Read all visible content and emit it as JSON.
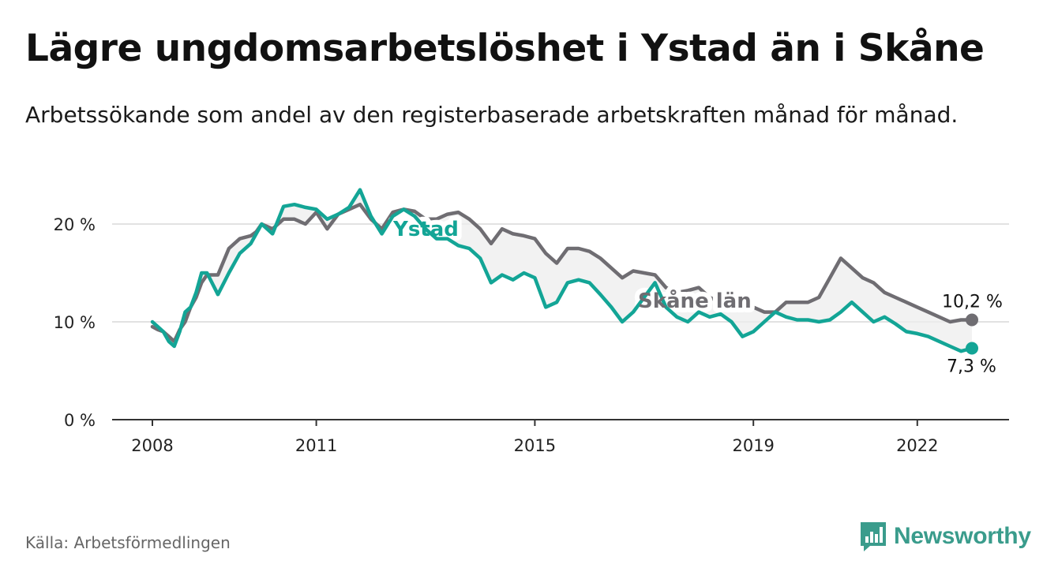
{
  "header": {
    "title": "Lägre ungdomsarbetslöshet i Ystad än i Skåne",
    "subtitle": "Arbetssökande som andel av den registerbaserade arbetskraften månad för månad."
  },
  "footer": {
    "source": "Källa: Arbetsförmedlingen",
    "brand": "Newsworthy"
  },
  "colors": {
    "ystad": "#13a596",
    "skane": "#6f6d72",
    "fill": "#eeeeee",
    "grid": "#d9d9d9",
    "axis": "#333333",
    "brand": "#3a9c8c"
  },
  "chart_data": {
    "type": "line",
    "title": "Lägre ungdomsarbetslöshet i Ystad än i Skåne",
    "xlabel": "",
    "ylabel": "",
    "x_unit": "year (decimal)",
    "xlim": [
      2007.3,
      2023.6
    ],
    "ylim": [
      0,
      25
    ],
    "x_ticks": [
      2008,
      2011,
      2015,
      2019,
      2022
    ],
    "x_tick_labels": [
      "2008",
      "2011",
      "2015",
      "2019",
      "2022"
    ],
    "y_ticks": [
      0,
      10,
      20
    ],
    "y_tick_labels": [
      "0 %",
      "10 %",
      "20 %"
    ],
    "grid": true,
    "series": [
      {
        "name": "Ystad",
        "label": "Ystad",
        "end_label": "7,3 %",
        "x": [
          2008.0,
          2008.1,
          2008.2,
          2008.3,
          2008.4,
          2008.5,
          2008.6,
          2008.7,
          2008.8,
          2008.9,
          2009.0,
          2009.2,
          2009.4,
          2009.6,
          2009.8,
          2009.9,
          2010.0,
          2010.2,
          2010.4,
          2010.6,
          2010.8,
          2011.0,
          2011.2,
          2011.4,
          2011.6,
          2011.8,
          2012.0,
          2012.2,
          2012.4,
          2012.6,
          2012.8,
          2013.0,
          2013.2,
          2013.4,
          2013.6,
          2013.8,
          2014.0,
          2014.2,
          2014.4,
          2014.6,
          2014.8,
          2015.0,
          2015.2,
          2015.4,
          2015.6,
          2015.8,
          2016.0,
          2016.2,
          2016.4,
          2016.6,
          2016.8,
          2017.0,
          2017.2,
          2017.4,
          2017.6,
          2017.8,
          2018.0,
          2018.2,
          2018.4,
          2018.6,
          2018.8,
          2019.0,
          2019.2,
          2019.4,
          2019.6,
          2019.8,
          2020.0,
          2020.2,
          2020.4,
          2020.6,
          2020.8,
          2021.0,
          2021.2,
          2021.4,
          2021.6,
          2021.8,
          2022.0,
          2022.2,
          2022.4,
          2022.6,
          2022.8,
          2023.0
        ],
        "values": [
          10.0,
          9.5,
          9.0,
          8.0,
          7.5,
          9.0,
          11.0,
          11.5,
          13.0,
          15.0,
          15.0,
          12.8,
          15.0,
          17.0,
          18.0,
          19.0,
          20.0,
          19.0,
          21.8,
          22.0,
          21.7,
          21.5,
          20.5,
          21.0,
          21.7,
          23.5,
          20.8,
          19.0,
          20.8,
          21.5,
          20.8,
          19.5,
          18.5,
          18.5,
          17.8,
          17.5,
          16.5,
          14.0,
          14.8,
          14.3,
          15.0,
          14.5,
          11.5,
          12.0,
          14.0,
          14.3,
          14.0,
          12.8,
          11.5,
          10.0,
          11.0,
          12.5,
          14.0,
          11.5,
          10.5,
          10.0,
          11.0,
          10.5,
          10.8,
          10.0,
          8.5,
          9.0,
          10.0,
          11.0,
          10.5,
          10.2,
          10.2,
          10.0,
          10.2,
          11.0,
          12.0,
          11.0,
          10.0,
          10.5,
          9.8,
          9.0,
          8.8,
          8.5,
          8.0,
          7.5,
          7.0,
          7.3
        ]
      },
      {
        "name": "Skåne län",
        "label": "Skåne län",
        "end_label": "10,2 %",
        "x": [
          2008.0,
          2008.1,
          2008.2,
          2008.3,
          2008.4,
          2008.5,
          2008.6,
          2008.7,
          2008.8,
          2008.9,
          2009.0,
          2009.2,
          2009.4,
          2009.6,
          2009.8,
          2009.9,
          2010.0,
          2010.2,
          2010.4,
          2010.6,
          2010.8,
          2011.0,
          2011.2,
          2011.4,
          2011.6,
          2011.8,
          2012.0,
          2012.2,
          2012.4,
          2012.6,
          2012.8,
          2013.0,
          2013.2,
          2013.4,
          2013.6,
          2013.8,
          2014.0,
          2014.2,
          2014.4,
          2014.6,
          2014.8,
          2015.0,
          2015.2,
          2015.4,
          2015.6,
          2015.8,
          2016.0,
          2016.2,
          2016.4,
          2016.6,
          2016.8,
          2017.0,
          2017.2,
          2017.4,
          2017.6,
          2017.8,
          2018.0,
          2018.2,
          2018.4,
          2018.6,
          2018.8,
          2019.0,
          2019.2,
          2019.4,
          2019.6,
          2019.8,
          2020.0,
          2020.2,
          2020.4,
          2020.6,
          2020.8,
          2021.0,
          2021.2,
          2021.4,
          2021.6,
          2021.8,
          2022.0,
          2022.2,
          2022.4,
          2022.6,
          2022.8,
          2023.0
        ],
        "values": [
          9.5,
          9.2,
          9.0,
          8.5,
          8.0,
          9.2,
          10.0,
          11.5,
          12.5,
          14.0,
          14.8,
          14.8,
          17.5,
          18.5,
          18.8,
          19.2,
          20.0,
          19.5,
          20.5,
          20.5,
          20.0,
          21.2,
          19.5,
          21.0,
          21.5,
          22.0,
          20.5,
          19.5,
          21.2,
          21.5,
          21.3,
          20.5,
          20.5,
          21.0,
          21.2,
          20.5,
          19.5,
          18.0,
          19.5,
          19.0,
          18.8,
          18.5,
          17.0,
          16.0,
          17.5,
          17.5,
          17.2,
          16.5,
          15.5,
          14.5,
          15.2,
          15.0,
          14.8,
          13.5,
          13.0,
          13.2,
          13.5,
          12.5,
          12.0,
          12.5,
          11.5,
          11.5,
          11.0,
          11.0,
          12.0,
          12.0,
          12.0,
          12.5,
          14.5,
          16.5,
          15.5,
          14.5,
          14.0,
          13.0,
          12.5,
          12.0,
          11.5,
          11.0,
          10.5,
          10.0,
          10.2,
          10.2
        ]
      }
    ]
  }
}
